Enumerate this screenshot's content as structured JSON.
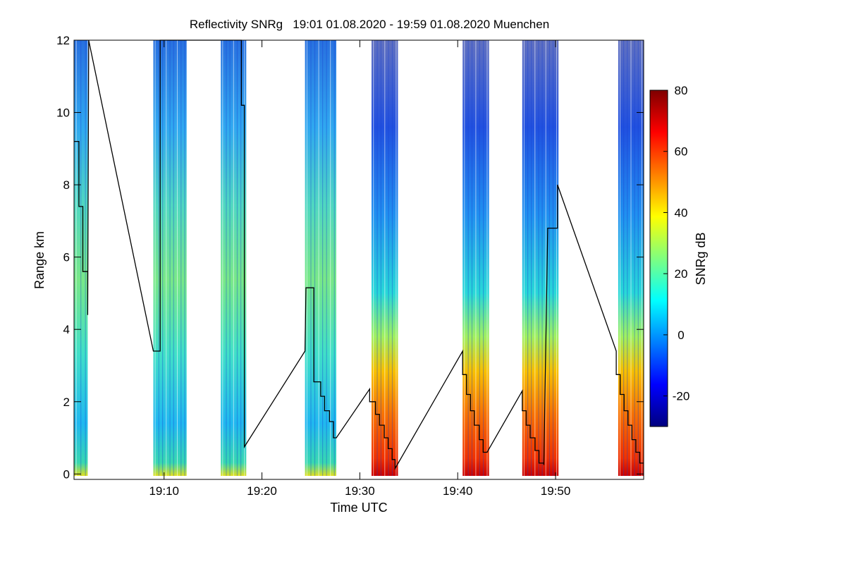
{
  "chart_data": {
    "type": "heatmap",
    "title": "Reflectivity SNRg   19:01 01.08.2020 - 19:59 01.08.2020 Muenchen",
    "xlabel": "Time UTC",
    "ylabel": "Range km",
    "x_ticks": [
      {
        "value": 10,
        "label": "19:10"
      },
      {
        "value": 20,
        "label": "19:20"
      },
      {
        "value": 30,
        "label": "19:30"
      },
      {
        "value": 40,
        "label": "19:40"
      },
      {
        "value": 50,
        "label": "19:50"
      }
    ],
    "y_ticks": [
      {
        "value": 0,
        "label": "0"
      },
      {
        "value": 2,
        "label": "2"
      },
      {
        "value": 4,
        "label": "4"
      },
      {
        "value": 6,
        "label": "6"
      },
      {
        "value": 8,
        "label": "8"
      },
      {
        "value": 10,
        "label": "10"
      },
      {
        "value": 12,
        "label": "12"
      }
    ],
    "xlim_minutes_after_1900": [
      0.8,
      59.0
    ],
    "ylim_km": [
      -0.15,
      12.0
    ],
    "colorbar": {
      "label": "SNRg dB",
      "range": [
        -30,
        80
      ],
      "ticks": [
        {
          "value": -20,
          "label": "-20"
        },
        {
          "value": 0,
          "label": "0"
        },
        {
          "value": 20,
          "label": "20"
        },
        {
          "value": 40,
          "label": "40"
        },
        {
          "value": 60,
          "label": "60"
        },
        {
          "value": 80,
          "label": "80"
        }
      ],
      "colormap": [
        "#00007f",
        "#0000ff",
        "#007fff",
        "#00ffff",
        "#7fff7f",
        "#ffff00",
        "#ff7f00",
        "#ff0000",
        "#7f0000"
      ]
    },
    "scan_blocks": [
      {
        "start": 0.8,
        "end": 2.2,
        "profile": "low"
      },
      {
        "start": 8.9,
        "end": 12.3,
        "profile": "low"
      },
      {
        "start": 15.8,
        "end": 18.4,
        "profile": "low"
      },
      {
        "start": 24.4,
        "end": 27.6,
        "profile": "low"
      },
      {
        "start": 31.2,
        "end": 33.9,
        "profile": "strong"
      },
      {
        "start": 40.5,
        "end": 43.2,
        "profile": "strong"
      },
      {
        "start": 46.6,
        "end": 50.3,
        "profile": "strong"
      },
      {
        "start": 56.4,
        "end": 59.0,
        "profile": "strong"
      }
    ],
    "line_series": {
      "name": "black trace",
      "color": "#000000",
      "points": [
        [
          0.8,
          9.2
        ],
        [
          1.3,
          9.2
        ],
        [
          1.3,
          7.4
        ],
        [
          1.7,
          7.4
        ],
        [
          1.7,
          5.6
        ],
        [
          2.2,
          5.6
        ],
        [
          2.2,
          4.4
        ],
        [
          2.3,
          12.0
        ],
        [
          8.9,
          3.4
        ],
        [
          9.6,
          3.4
        ],
        [
          9.6,
          12.0
        ],
        [
          17.9,
          12.0
        ],
        [
          17.9,
          10.2
        ],
        [
          18.2,
          10.2
        ],
        [
          18.2,
          0.75
        ],
        [
          24.4,
          3.4
        ],
        [
          24.5,
          5.15
        ],
        [
          25.3,
          5.15
        ],
        [
          25.3,
          2.55
        ],
        [
          26.0,
          2.55
        ],
        [
          26.0,
          2.15
        ],
        [
          26.4,
          2.15
        ],
        [
          26.4,
          1.75
        ],
        [
          26.9,
          1.75
        ],
        [
          26.9,
          1.45
        ],
        [
          27.3,
          1.45
        ],
        [
          27.3,
          1.0
        ],
        [
          27.6,
          1.0
        ],
        [
          31.0,
          2.35
        ],
        [
          31.0,
          2.0
        ],
        [
          31.6,
          2.0
        ],
        [
          31.6,
          1.65
        ],
        [
          32.0,
          1.65
        ],
        [
          32.0,
          1.35
        ],
        [
          32.5,
          1.35
        ],
        [
          32.5,
          1.0
        ],
        [
          32.9,
          1.0
        ],
        [
          32.9,
          0.7
        ],
        [
          33.3,
          0.7
        ],
        [
          33.3,
          0.4
        ],
        [
          33.6,
          0.4
        ],
        [
          33.6,
          0.15
        ],
        [
          40.5,
          3.4
        ],
        [
          40.5,
          2.75
        ],
        [
          40.9,
          2.75
        ],
        [
          40.9,
          2.2
        ],
        [
          41.3,
          2.2
        ],
        [
          41.3,
          1.75
        ],
        [
          41.7,
          1.75
        ],
        [
          41.7,
          1.35
        ],
        [
          42.2,
          1.35
        ],
        [
          42.2,
          0.95
        ],
        [
          42.6,
          0.95
        ],
        [
          42.6,
          0.6
        ],
        [
          43.0,
          0.6
        ],
        [
          46.6,
          2.3
        ],
        [
          46.6,
          1.75
        ],
        [
          47.0,
          1.75
        ],
        [
          47.0,
          1.35
        ],
        [
          47.4,
          1.35
        ],
        [
          47.4,
          1.0
        ],
        [
          47.9,
          1.0
        ],
        [
          47.9,
          0.65
        ],
        [
          48.3,
          0.65
        ],
        [
          48.3,
          0.3
        ],
        [
          48.8,
          0.3
        ],
        [
          48.8,
          0.25
        ],
        [
          49.2,
          6.8
        ],
        [
          50.2,
          6.8
        ],
        [
          50.2,
          8.0
        ],
        [
          56.2,
          3.4
        ],
        [
          56.2,
          2.75
        ],
        [
          56.6,
          2.75
        ],
        [
          56.6,
          2.2
        ],
        [
          57.0,
          2.2
        ],
        [
          57.0,
          1.75
        ],
        [
          57.4,
          1.75
        ],
        [
          57.4,
          1.35
        ],
        [
          57.8,
          1.35
        ],
        [
          57.8,
          0.95
        ],
        [
          58.2,
          0.95
        ],
        [
          58.2,
          0.6
        ],
        [
          58.6,
          0.6
        ],
        [
          58.6,
          0.3
        ],
        [
          59.0,
          0.3
        ]
      ]
    }
  }
}
